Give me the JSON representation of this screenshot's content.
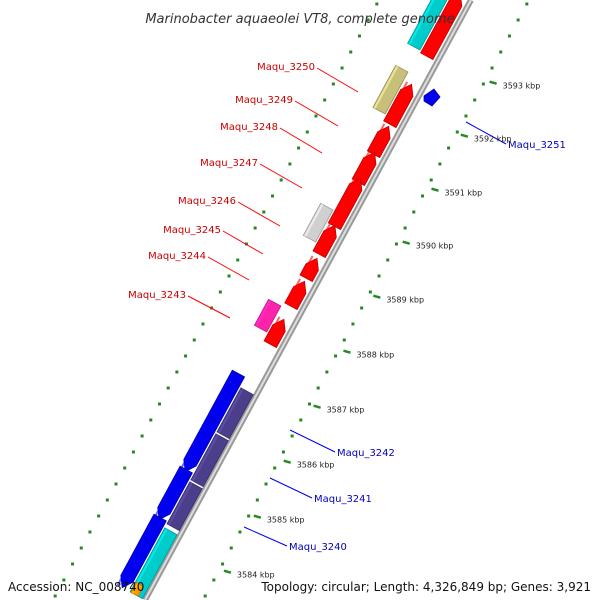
{
  "title": "Marinobacter aquaeolei VT8, complete genome",
  "footer": {
    "accession": "Accession: NC_008740",
    "topology": "Topology: circular; Length: 4,326,849 bp; Genes: 3,921"
  },
  "ticks": [
    "3584 kbp",
    "3585 kbp",
    "3586 kbp",
    "3587 kbp",
    "3588 kbp",
    "3589 kbp",
    "3590 kbp",
    "3591 kbp",
    "3592 kbp",
    "3593 kbp"
  ],
  "gene_labels_left": [
    "Maqu_3250",
    "Maqu_3249",
    "Maqu_3248",
    "Maqu_3247",
    "Maqu_3246",
    "Maqu_3245",
    "Maqu_3244",
    "Maqu_3243"
  ],
  "gene_labels_right": [
    "Maqu_3251",
    "Maqu_3242",
    "Maqu_3241",
    "Maqu_3240"
  ],
  "colors": {
    "forward_cds": "#ff0000",
    "reverse_cds": "#0000ee",
    "cyan_feature": "#00cccc",
    "khaki_feature": "#c8c07a",
    "gray_feature": "#d0d0d0",
    "magenta_feature": "#ff22aa",
    "purple_feature": "#4b3f8c",
    "orange_feature": "#ff9900",
    "backbone": "#999999",
    "gc_dots": "#228b22",
    "left_label_color": "#cc0000",
    "right_label_color": "#0000bb"
  }
}
